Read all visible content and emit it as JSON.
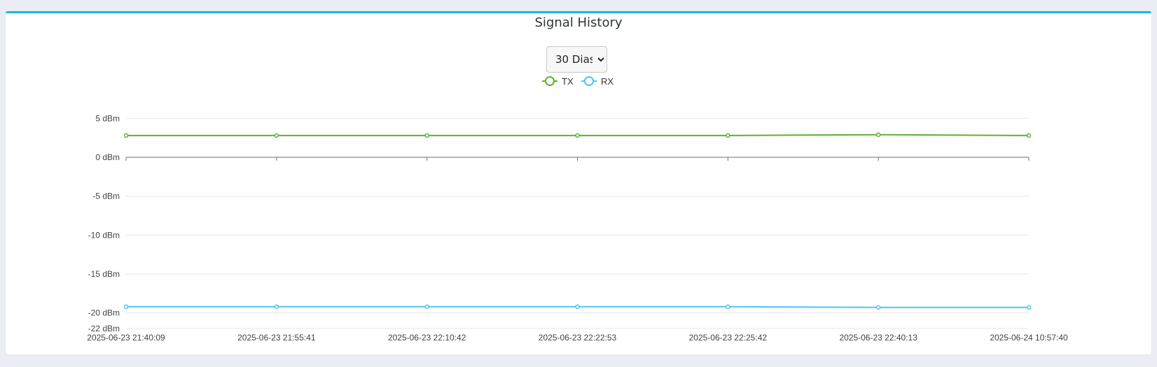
{
  "panel": {
    "title": "Signal History",
    "range_select": {
      "selected": "30 Dias"
    }
  },
  "colors": {
    "accent": "#17b8e8",
    "tx": "#5db12f",
    "rx": "#4fc3f7",
    "grid": "#e3e6ee"
  },
  "chart_data": {
    "type": "line",
    "title": "Signal History",
    "x": [
      "2025-06-23 21:40:09",
      "2025-06-23 21:55:41",
      "2025-06-23 22:10:42",
      "2025-06-23 22:22:53",
      "2025-06-23 22:25:42",
      "2025-06-23 22:40:13",
      "2025-06-24 10:57:40"
    ],
    "series": [
      {
        "name": "TX",
        "values": [
          2.8,
          2.8,
          2.8,
          2.8,
          2.8,
          2.9,
          2.8
        ]
      },
      {
        "name": "RX",
        "values": [
          -19.2,
          -19.2,
          -19.2,
          -19.2,
          -19.2,
          -19.3,
          -19.3
        ]
      }
    ],
    "yticks": [
      "5 dBm",
      "0 dBm",
      "-5 dBm",
      "-10 dBm",
      "-15 dBm",
      "-20 dBm",
      "-22 dBm"
    ],
    "ytick_values": [
      5,
      0,
      -5,
      -10,
      -15,
      -20,
      -22
    ],
    "ylim": [
      -22,
      5
    ],
    "xlabel": "",
    "ylabel": "",
    "grid": true,
    "legend": "top-center"
  }
}
